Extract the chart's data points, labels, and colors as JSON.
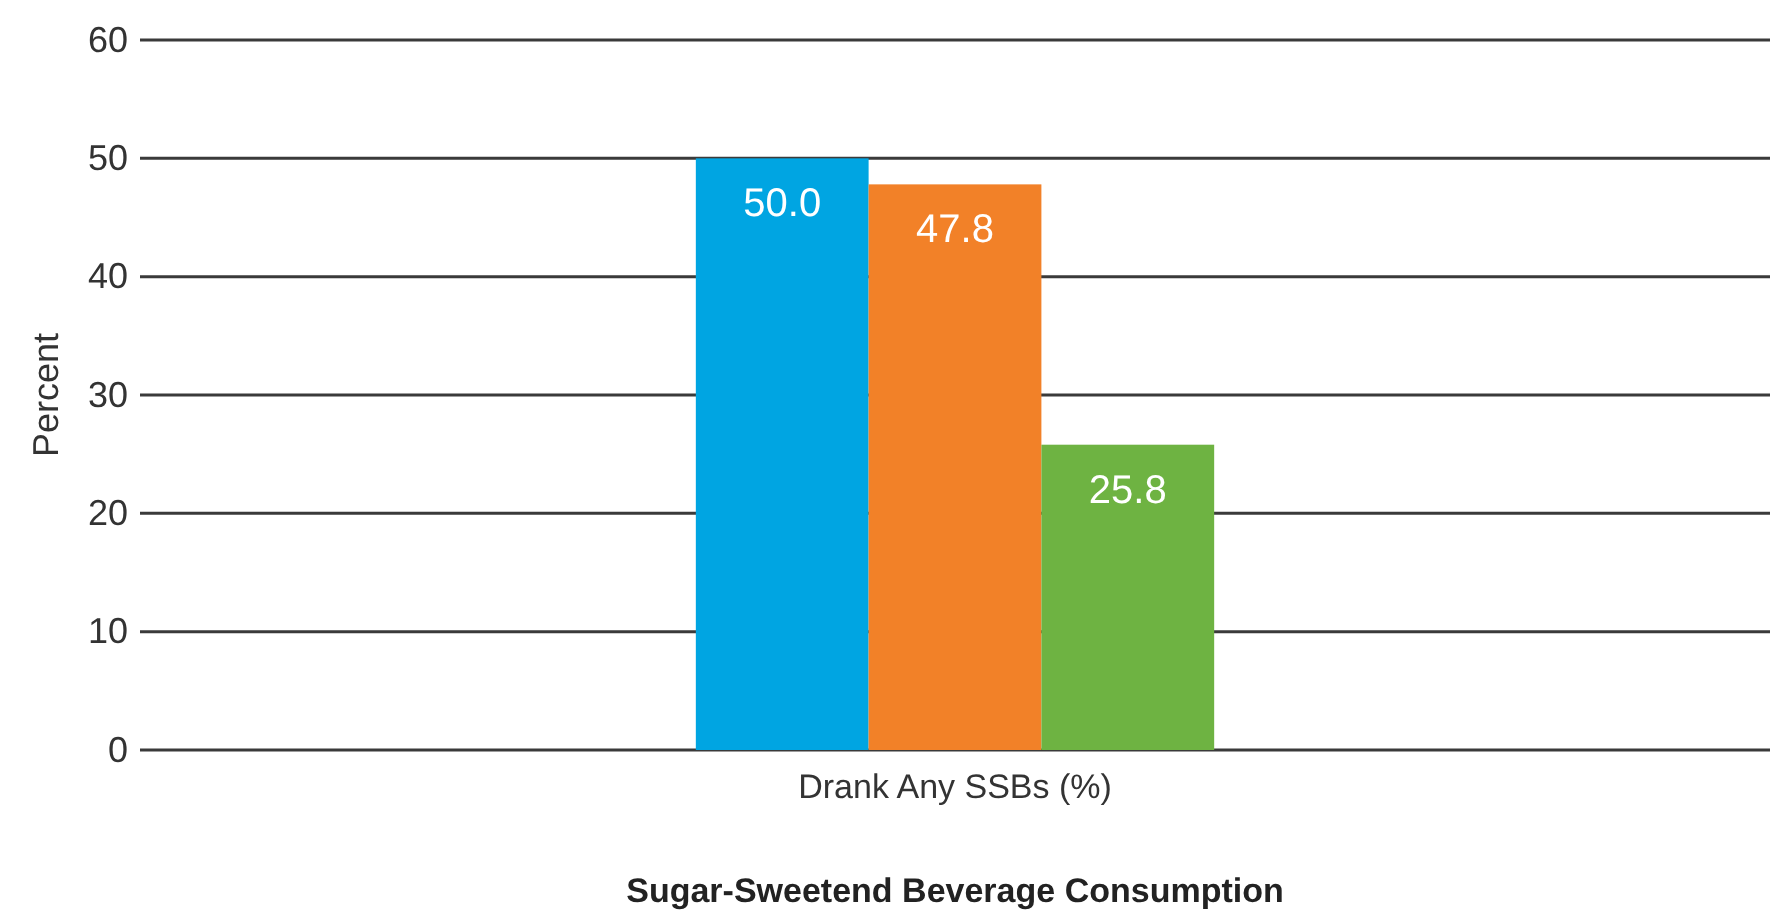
{
  "chart_data": {
    "type": "bar",
    "xlabel": "Sugar-Sweetend Beverage Consumption",
    "ylabel": "Percent",
    "categories": [
      "Drank Any SSBs (%)"
    ],
    "series": [
      {
        "color": "#00a5e2",
        "values": [
          50.0
        ],
        "value_labels": [
          "50.0"
        ]
      },
      {
        "color": "#f28128",
        "values": [
          47.8
        ],
        "value_labels": [
          "47.8"
        ]
      },
      {
        "color": "#6eb342",
        "values": [
          25.8
        ],
        "value_labels": [
          "25.8"
        ]
      }
    ],
    "ylim": [
      0,
      60
    ],
    "yticks": [
      0,
      10,
      20,
      30,
      40,
      50,
      60
    ],
    "grid": "y"
  }
}
